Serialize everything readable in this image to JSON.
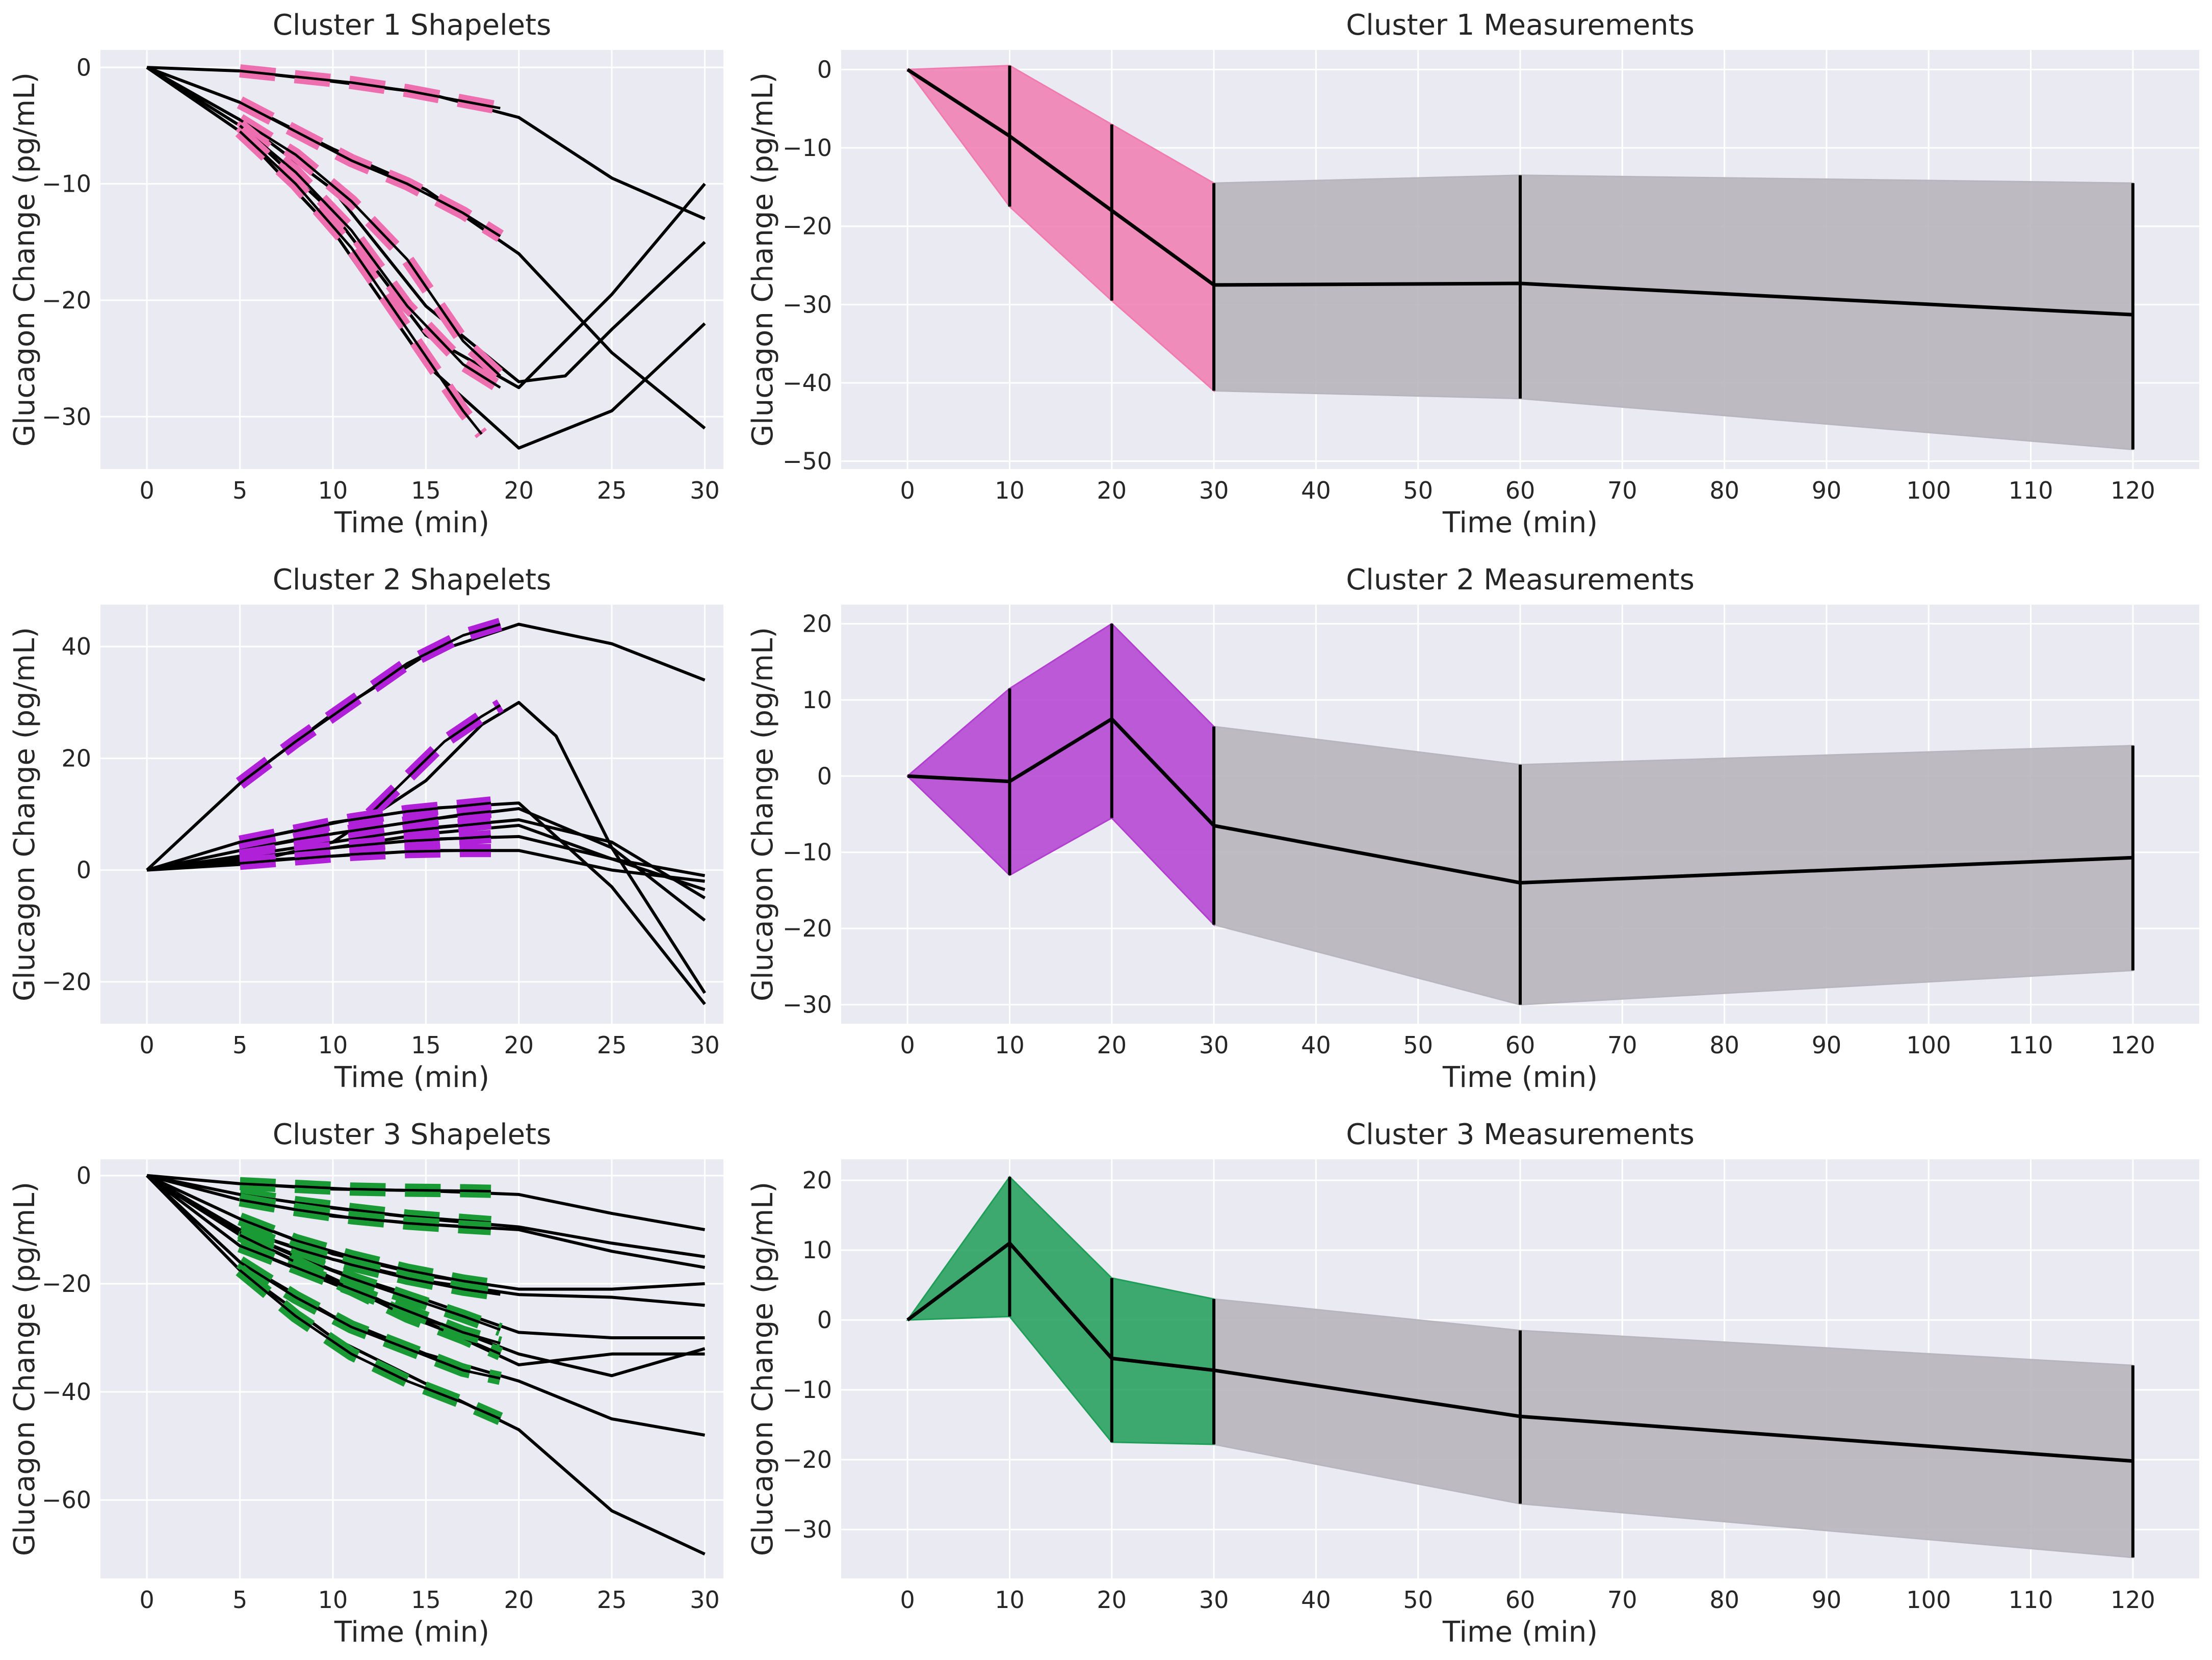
{
  "chart_data": [
    {
      "panel": "shapelets",
      "cluster": 1,
      "type": "line",
      "title": "Cluster 1 Shapelets",
      "xlabel": "Time (min)",
      "ylabel": "Glucagon Change (pg/mL)",
      "xlim": [
        -2.5,
        31
      ],
      "ylim": [
        -34.5,
        1.5
      ],
      "xticks": [
        0,
        5,
        10,
        15,
        20,
        25,
        30
      ],
      "yticks": [
        0,
        -10,
        -20,
        -30
      ],
      "shapelet_color": "#ee6fb0",
      "series": [
        {
          "name": "curve-1",
          "x": [
            0,
            5,
            10,
            15,
            20,
            25,
            30
          ],
          "y": [
            0,
            -0.3,
            -1.2,
            -2.2,
            -4.3,
            -9.5,
            -13
          ]
        },
        {
          "name": "curve-2",
          "x": [
            0,
            5,
            10,
            15,
            20,
            25,
            30
          ],
          "y": [
            0,
            -3,
            -7,
            -10.5,
            -16,
            -24.5,
            -31
          ]
        },
        {
          "name": "curve-3",
          "x": [
            0,
            5,
            10,
            15,
            20,
            22.5,
            25,
            30
          ],
          "y": [
            0,
            -4.5,
            -10.5,
            -20.5,
            -27,
            -26.5,
            -22.5,
            -15
          ]
        },
        {
          "name": "curve-4",
          "x": [
            0,
            5,
            10,
            15,
            20,
            25,
            30
          ],
          "y": [
            0,
            -5,
            -12.5,
            -23,
            -27.5,
            -19.5,
            -10
          ]
        },
        {
          "name": "curve-5",
          "x": [
            0,
            5,
            10,
            15,
            20,
            25,
            30
          ],
          "y": [
            0,
            -5.5,
            -14,
            -25.5,
            -32.7,
            -29.5,
            -22
          ]
        }
      ],
      "shapelets": [
        {
          "x": [
            5,
            8,
            11,
            14,
            17,
            19
          ],
          "y": [
            -0.3,
            -0.8,
            -1.3,
            -2.0,
            -2.9,
            -3.5
          ]
        },
        {
          "x": [
            5,
            8,
            11,
            14,
            17,
            19
          ],
          "y": [
            -3,
            -5.5,
            -8,
            -10,
            -12.5,
            -14.5
          ]
        },
        {
          "x": [
            5,
            8,
            11,
            14,
            17,
            19
          ],
          "y": [
            -4.5,
            -7.5,
            -11.5,
            -16.5,
            -23.5,
            -26.5
          ]
        },
        {
          "x": [
            5,
            8,
            11,
            14,
            17,
            19
          ],
          "y": [
            -5,
            -9,
            -14,
            -20.5,
            -25.5,
            -27.5
          ]
        },
        {
          "x": [
            5,
            8,
            11,
            14,
            17,
            18
          ],
          "y": [
            -5.5,
            -10,
            -15.5,
            -22.5,
            -29.5,
            -31.5
          ]
        }
      ]
    },
    {
      "panel": "measurements",
      "cluster": 1,
      "type": "line",
      "title": "Cluster 1 Measurements",
      "xlabel": "Time (min)",
      "ylabel": "Glucagon Change (pg/mL)",
      "xlim": [
        -6.5,
        126.5
      ],
      "ylim": [
        -51,
        2.5
      ],
      "xticks": [
        0,
        10,
        20,
        30,
        40,
        50,
        60,
        70,
        80,
        90,
        100,
        110,
        120
      ],
      "yticks": [
        0,
        -10,
        -20,
        -30,
        -40,
        -50
      ],
      "shapelet_color": "#f07bb0",
      "band_color": "#b8b5bd",
      "x": [
        0,
        10,
        20,
        30,
        60,
        120
      ],
      "mean": [
        0,
        -8.5,
        -18,
        -27.5,
        -27.3,
        -31.3
      ],
      "upper": [
        0,
        0.5,
        -7,
        -14.5,
        -13.5,
        -14.5
      ],
      "lower": [
        0,
        -17.5,
        -29.5,
        -41,
        -42,
        -48.5
      ]
    },
    {
      "panel": "shapelets",
      "cluster": 2,
      "type": "line",
      "title": "Cluster 2 Shapelets",
      "xlabel": "Time (min)",
      "ylabel": "Glucagon Change (pg/mL)",
      "xlim": [
        -2.5,
        31
      ],
      "ylim": [
        -27.5,
        47.5
      ],
      "xticks": [
        0,
        5,
        10,
        15,
        20,
        25,
        30
      ],
      "yticks": [
        40,
        20,
        0,
        -20
      ],
      "shapelet_color": "#b020d8",
      "series": [
        {
          "name": "curve-1",
          "x": [
            0,
            5,
            10,
            15,
            20,
            25,
            30
          ],
          "y": [
            0,
            15.5,
            28,
            38.5,
            44,
            40.5,
            34
          ]
        },
        {
          "name": "curve-2",
          "x": [
            0,
            5,
            10,
            15,
            18,
            20,
            22,
            25,
            30
          ],
          "y": [
            0,
            1,
            5,
            16,
            26,
            30,
            24,
            4,
            -22
          ]
        },
        {
          "name": "curve-3",
          "x": [
            0,
            5,
            10,
            15,
            20,
            25,
            30
          ],
          "y": [
            0,
            5,
            8.5,
            11,
            12,
            -3,
            -24
          ]
        },
        {
          "name": "curve-4",
          "x": [
            0,
            5,
            10,
            15,
            20,
            25,
            30
          ],
          "y": [
            0,
            3.5,
            6.5,
            9,
            11,
            4,
            -9
          ]
        },
        {
          "name": "curve-5",
          "x": [
            0,
            5,
            10,
            15,
            20,
            25,
            30
          ],
          "y": [
            0,
            2.5,
            5,
            7.5,
            9,
            5,
            -5
          ]
        },
        {
          "name": "curve-6",
          "x": [
            0,
            5,
            10,
            15,
            20,
            25,
            30
          ],
          "y": [
            0,
            2,
            4,
            5.5,
            6,
            2,
            -3.5
          ]
        },
        {
          "name": "curve-7",
          "x": [
            0,
            5,
            10,
            15,
            20,
            25,
            30
          ],
          "y": [
            0,
            1.5,
            2.5,
            3.5,
            3.5,
            0,
            -2
          ]
        },
        {
          "name": "curve-8",
          "x": [
            0,
            5,
            10,
            15,
            20,
            25,
            30
          ],
          "y": [
            0,
            2,
            4,
            6.5,
            8,
            2,
            -1
          ]
        }
      ],
      "shapelets": [
        {
          "x": [
            5,
            8,
            11,
            14,
            17,
            19
          ],
          "y": [
            15.5,
            23,
            30,
            37,
            42,
            44
          ]
        },
        {
          "x": [
            12,
            14,
            16,
            18,
            19
          ],
          "y": [
            10,
            16.5,
            23,
            27.5,
            29.5
          ]
        },
        {
          "x": [
            5,
            8,
            11,
            14,
            17,
            18.5
          ],
          "y": [
            5,
            7,
            9,
            10.5,
            11.5,
            12
          ]
        },
        {
          "x": [
            5,
            8,
            11,
            14,
            17,
            18.5
          ],
          "y": [
            3.5,
            5.5,
            7,
            8.5,
            10,
            10.5
          ]
        },
        {
          "x": [
            5,
            8,
            11,
            14,
            17,
            18.5
          ],
          "y": [
            2.5,
            4,
            5.5,
            7,
            8,
            8.5
          ]
        },
        {
          "x": [
            5,
            8,
            11,
            14,
            17,
            18.5
          ],
          "y": [
            2,
            3.2,
            4.3,
            5.2,
            5.7,
            6
          ]
        },
        {
          "x": [
            5,
            8,
            11,
            14,
            17,
            18.5
          ],
          "y": [
            1.2,
            2,
            2.8,
            3.3,
            3.5,
            3.5
          ]
        }
      ]
    },
    {
      "panel": "measurements",
      "cluster": 2,
      "type": "line",
      "title": "Cluster 2 Measurements",
      "xlabel": "Time (min)",
      "ylabel": "Glucagon Change (pg/mL)",
      "xlim": [
        -6.5,
        126.5
      ],
      "ylim": [
        -32.5,
        22.5
      ],
      "xticks": [
        0,
        10,
        20,
        30,
        40,
        50,
        60,
        70,
        80,
        90,
        100,
        110,
        120
      ],
      "yticks": [
        20,
        10,
        0,
        -10,
        -20,
        -30
      ],
      "shapelet_color": "#b33fd1",
      "band_color": "#b8b5bd",
      "x": [
        0,
        10,
        20,
        30,
        60,
        120
      ],
      "mean": [
        0,
        -0.7,
        7.5,
        -6.5,
        -14,
        -10.7
      ],
      "upper": [
        0,
        11.5,
        20,
        6.5,
        1.5,
        4
      ],
      "lower": [
        0,
        -13,
        -5.5,
        -19.5,
        -30,
        -25.5
      ]
    },
    {
      "panel": "shapelets",
      "cluster": 3,
      "type": "line",
      "title": "Cluster 3 Shapelets",
      "xlabel": "Time (min)",
      "ylabel": "Glucagon Change (pg/mL)",
      "xlim": [
        -2.5,
        31
      ],
      "ylim": [
        -74.5,
        3
      ],
      "xticks": [
        0,
        5,
        10,
        15,
        20,
        25,
        30
      ],
      "yticks": [
        0,
        -20,
        -40,
        -60
      ],
      "shapelet_color": "#1a9a35",
      "series": [
        {
          "name": "curve-1",
          "x": [
            0,
            5,
            10,
            15,
            20,
            25,
            30
          ],
          "y": [
            0,
            -1.5,
            -2.5,
            -2.8,
            -3.5,
            -7,
            -10
          ]
        },
        {
          "name": "curve-2",
          "x": [
            0,
            5,
            10,
            15,
            20,
            25,
            30
          ],
          "y": [
            0,
            -3.5,
            -6,
            -8,
            -9.5,
            -12.5,
            -15
          ]
        },
        {
          "name": "curve-3",
          "x": [
            0,
            5,
            10,
            15,
            20,
            25,
            30
          ],
          "y": [
            0,
            -4.5,
            -7.5,
            -9,
            -10,
            -14,
            -17
          ]
        },
        {
          "name": "curve-4",
          "x": [
            0,
            5,
            10,
            15,
            20,
            25,
            30
          ],
          "y": [
            0,
            -8,
            -14.5,
            -18.5,
            -21,
            -21,
            -20
          ]
        },
        {
          "name": "curve-5",
          "x": [
            0,
            5,
            10,
            15,
            20,
            25,
            30
          ],
          "y": [
            0,
            -10,
            -15.5,
            -19.5,
            -22,
            -22.5,
            -24
          ]
        },
        {
          "name": "curve-6",
          "x": [
            0,
            5,
            10,
            15,
            20,
            25,
            30
          ],
          "y": [
            0,
            -10.5,
            -17.5,
            -23,
            -29,
            -30,
            -30
          ]
        },
        {
          "name": "curve-7",
          "x": [
            0,
            5,
            10,
            15,
            20,
            25,
            30
          ],
          "y": [
            0,
            -11,
            -19,
            -27,
            -35,
            -33,
            -33
          ]
        },
        {
          "name": "curve-8",
          "x": [
            0,
            5,
            10,
            15,
            20,
            25,
            30
          ],
          "y": [
            0,
            -13,
            -20,
            -26.5,
            -33,
            -37,
            -32
          ]
        },
        {
          "name": "curve-9",
          "x": [
            0,
            5,
            10,
            15,
            20,
            25,
            30
          ],
          "y": [
            0,
            -16,
            -26,
            -33,
            -38,
            -45,
            -48
          ]
        },
        {
          "name": "curve-10",
          "x": [
            0,
            5,
            10,
            15,
            20,
            25,
            30
          ],
          "y": [
            0,
            -17.5,
            -30,
            -38.5,
            -47,
            -62,
            -70
          ]
        }
      ],
      "shapelets": [
        {
          "x": [
            5,
            8,
            11,
            14,
            17,
            18.5
          ],
          "y": [
            -1.5,
            -2,
            -2.5,
            -2.7,
            -2.8,
            -2.9
          ]
        },
        {
          "x": [
            5,
            8,
            11,
            14,
            17,
            18.5
          ],
          "y": [
            -3.5,
            -5,
            -6.3,
            -7.5,
            -8.3,
            -8.7
          ]
        },
        {
          "x": [
            5,
            8,
            11,
            14,
            17,
            18.5
          ],
          "y": [
            -4.5,
            -6.3,
            -7.8,
            -8.8,
            -9.5,
            -9.8
          ]
        },
        {
          "x": [
            5,
            8,
            11,
            14,
            17,
            19
          ],
          "y": [
            -8,
            -12,
            -15,
            -17.5,
            -19.5,
            -20.5
          ]
        },
        {
          "x": [
            5,
            8,
            11,
            14,
            17,
            19
          ],
          "y": [
            -10,
            -13.5,
            -16.5,
            -19,
            -21,
            -22
          ]
        },
        {
          "x": [
            5,
            8,
            11,
            14,
            17,
            19
          ],
          "y": [
            -10.5,
            -15,
            -19,
            -22.5,
            -26,
            -28.5
          ]
        },
        {
          "x": [
            5,
            8,
            11,
            14,
            17,
            19
          ],
          "y": [
            -11,
            -16,
            -21,
            -26,
            -30,
            -33
          ]
        },
        {
          "x": [
            5,
            8,
            11,
            14,
            17,
            19
          ],
          "y": [
            -13,
            -17,
            -21,
            -25,
            -29,
            -31
          ]
        },
        {
          "x": [
            5,
            8,
            11,
            14,
            17,
            19
          ],
          "y": [
            -16,
            -22.5,
            -28,
            -32,
            -36,
            -37.5
          ]
        },
        {
          "x": [
            5,
            8,
            11,
            14,
            17,
            19
          ],
          "y": [
            -17.5,
            -26,
            -33,
            -38,
            -42,
            -45
          ]
        }
      ]
    },
    {
      "panel": "measurements",
      "cluster": 3,
      "type": "line",
      "title": "Cluster 3 Measurements",
      "xlabel": "Time (min)",
      "ylabel": "Glucagon Change (pg/mL)",
      "xlim": [
        -6.5,
        126.5
      ],
      "ylim": [
        -37,
        23
      ],
      "xticks": [
        0,
        10,
        20,
        30,
        40,
        50,
        60,
        70,
        80,
        90,
        100,
        110,
        120
      ],
      "yticks": [
        20,
        10,
        0,
        -10,
        -20,
        -30
      ],
      "shapelet_color": "#1f9e58",
      "band_color": "#b8b5bd",
      "x": [
        0,
        10,
        20,
        30,
        60,
        120
      ],
      "mean": [
        0,
        11,
        -5.5,
        -7.2,
        -13.8,
        -20.2
      ],
      "upper": [
        0,
        20.5,
        6,
        3,
        -1.5,
        -6.5
      ],
      "lower": [
        0,
        0.5,
        -17.5,
        -17.8,
        -26.3,
        -34
      ]
    }
  ]
}
